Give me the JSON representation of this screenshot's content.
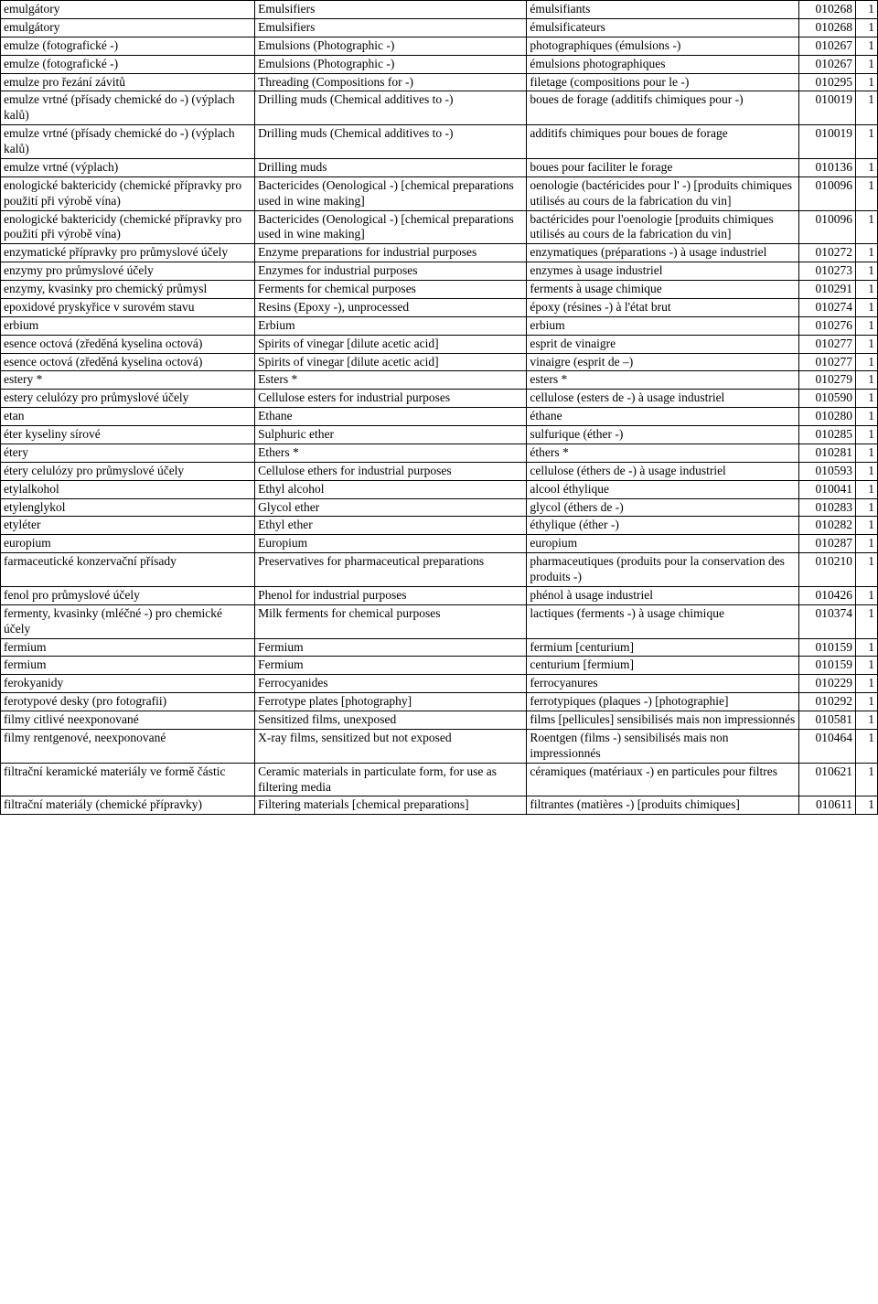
{
  "table": {
    "rows": [
      {
        "cz": "emulgátory",
        "en": "Emulsifiers",
        "fr": "émulsifiants",
        "code": "010268",
        "cls": "1"
      },
      {
        "cz": "emulgátory",
        "en": "Emulsifiers",
        "fr": "émulsificateurs",
        "code": "010268",
        "cls": "1"
      },
      {
        "cz": "emulze (fotografické -)",
        "en": "Emulsions (Photographic -)",
        "fr": "photographiques (émulsions -)",
        "code": "010267",
        "cls": "1"
      },
      {
        "cz": "emulze (fotografické -)",
        "en": "Emulsions (Photographic -)",
        "fr": "émulsions photographiques",
        "code": "010267",
        "cls": "1"
      },
      {
        "cz": "emulze pro řezání závitů",
        "en": "Threading (Compositions for -)",
        "fr": "filetage (compositions pour le -)",
        "code": "010295",
        "cls": "1"
      },
      {
        "cz": "emulze vrtné (přísady chemické do -) (výplach kalů)",
        "en": "Drilling muds (Chemical additives to -)",
        "fr": "boues de forage (additifs chimiques pour -)",
        "code": "010019",
        "cls": "1"
      },
      {
        "cz": "emulze vrtné (přísady chemické do -) (výplach kalů)",
        "en": "Drilling muds (Chemical additives to -)",
        "fr": "additifs chimiques pour boues de forage",
        "code": "010019",
        "cls": "1"
      },
      {
        "cz": "emulze vrtné (výplach)",
        "en": "Drilling muds",
        "fr": "boues pour faciliter le forage",
        "code": "010136",
        "cls": "1"
      },
      {
        "cz": "enologické baktericidy (chemické přípravky pro použití při výrobě vína)",
        "en": "Bactericides (Oenological -) [chemical preparations used in wine making]",
        "fr": "oenologie (bactéricides pour l' -) [produits chimiques utilisés au cours de la fabrication du vin]",
        "code": "010096",
        "cls": "1"
      },
      {
        "cz": "enologické baktericidy (chemické přípravky pro použití při výrobě vína)",
        "en": "Bactericides (Oenological -) [chemical preparations used in wine making]",
        "fr": "bactéricides pour l'oenologie [produits chimiques utilisés au cours de la fabrication du vin]",
        "code": "010096",
        "cls": "1"
      },
      {
        "cz": "enzymatické přípravky pro průmyslové účely",
        "en": "Enzyme preparations for industrial purposes",
        "fr": "enzymatiques (préparations -) à usage industriel",
        "code": "010272",
        "cls": "1"
      },
      {
        "cz": "enzymy pro průmyslové účely",
        "en": "Enzymes for industrial purposes",
        "fr": "enzymes à usage industriel",
        "code": "010273",
        "cls": "1"
      },
      {
        "cz": "enzymy, kvasinky pro chemický průmysl",
        "en": "Ferments for chemical purposes",
        "fr": "ferments à usage chimique",
        "code": "010291",
        "cls": "1"
      },
      {
        "cz": "epoxidové pryskyřice v surovém stavu",
        "en": "Resins (Epoxy -), unprocessed",
        "fr": "époxy (résines -) à l'état brut",
        "code": "010274",
        "cls": "1"
      },
      {
        "cz": "erbium",
        "en": "Erbium",
        "fr": "erbium",
        "code": "010276",
        "cls": "1"
      },
      {
        "cz": "esence octová (zředěná kyselina octová)",
        "en": "Spirits of vinegar [dilute acetic acid]",
        "fr": "esprit de vinaigre",
        "code": "010277",
        "cls": "1"
      },
      {
        "cz": "esence octová (zředěná kyselina octová)",
        "en": "Spirits of vinegar [dilute acetic acid]",
        "fr": "vinaigre (esprit de –)",
        "code": "010277",
        "cls": "1"
      },
      {
        "cz": "estery *",
        "en": "Esters *",
        "fr": "esters *",
        "code": "010279",
        "cls": "1"
      },
      {
        "cz": "estery celulózy pro průmyslové účely",
        "en": "Cellulose esters for industrial purposes",
        "fr": "cellulose (esters de -) à usage industriel",
        "code": "010590",
        "cls": "1"
      },
      {
        "cz": "etan",
        "en": "Ethane",
        "fr": "éthane",
        "code": "010280",
        "cls": "1"
      },
      {
        "cz": "éter kyseliny sírové",
        "en": "Sulphuric ether",
        "fr": "sulfurique (éther -)",
        "code": "010285",
        "cls": "1"
      },
      {
        "cz": "étery",
        "en": "Ethers *",
        "fr": "éthers *",
        "code": "010281",
        "cls": "1"
      },
      {
        "cz": "étery celulózy pro průmyslové účely",
        "en": "Cellulose ethers for industrial purposes",
        "fr": "cellulose (éthers de -) à usage industriel",
        "code": "010593",
        "cls": "1"
      },
      {
        "cz": "etylalkohol",
        "en": "Ethyl alcohol",
        "fr": "alcool éthylique",
        "code": "010041",
        "cls": "1"
      },
      {
        "cz": "etylenglykol",
        "en": "Glycol ether",
        "fr": "glycol (éthers de -)",
        "code": "010283",
        "cls": "1"
      },
      {
        "cz": "etyléter",
        "en": "Ethyl ether",
        "fr": "éthylique (éther -)",
        "code": "010282",
        "cls": "1"
      },
      {
        "cz": "europium",
        "en": "Europium",
        "fr": "europium",
        "code": "010287",
        "cls": "1"
      },
      {
        "cz": "farmaceutické konzervační přísady",
        "en": "Preservatives for pharmaceutical preparations",
        "fr": "pharmaceutiques (produits pour la conservation des produits -)",
        "code": "010210",
        "cls": "1"
      },
      {
        "cz": "fenol pro průmyslové účely",
        "en": "Phenol for industrial purposes",
        "fr": "phénol à usage industriel",
        "code": "010426",
        "cls": "1"
      },
      {
        "cz": "fermenty, kvasinky (mléčné -) pro chemické účely",
        "en": "Milk ferments for chemical purposes",
        "fr": "lactiques (ferments -) à usage chimique",
        "code": "010374",
        "cls": "1"
      },
      {
        "cz": "fermium",
        "en": "Fermium",
        "fr": "fermium [centurium]",
        "code": "010159",
        "cls": "1"
      },
      {
        "cz": "fermium",
        "en": "Fermium",
        "fr": "centurium [fermium]",
        "code": "010159",
        "cls": "1"
      },
      {
        "cz": "ferokyanidy",
        "en": "Ferrocyanides",
        "fr": "ferrocyanures",
        "code": "010229",
        "cls": "1"
      },
      {
        "cz": "ferotypové desky (pro fotografii)",
        "en": "Ferrotype plates [photography]",
        "fr": "ferrotypiques (plaques -) [photographie]",
        "code": "010292",
        "cls": "1"
      },
      {
        "cz": "filmy citlivé neexponované",
        "en": "Sensitized films, unexposed",
        "fr": "films [pellicules] sensibilisés mais non impressionnés",
        "code": "010581",
        "cls": "1"
      },
      {
        "cz": "filmy rentgenové, neexponované",
        "en": "X-ray films, sensitized but not exposed",
        "fr": "Roentgen (films -) sensibilisés mais non impressionnés",
        "code": "010464",
        "cls": "1"
      },
      {
        "cz": "filtrační keramické materiály ve formě částic",
        "en": "Ceramic materials in particulate form, for use as filtering media",
        "fr": "céramiques (matériaux -) en particules pour filtres",
        "code": "010621",
        "cls": "1"
      },
      {
        "cz": "filtrační materiály (chemické přípravky)",
        "en": "Filtering materials [chemical preparations]",
        "fr": "filtrantes (matières -) [produits chimiques]",
        "code": "010611",
        "cls": "1"
      }
    ]
  }
}
